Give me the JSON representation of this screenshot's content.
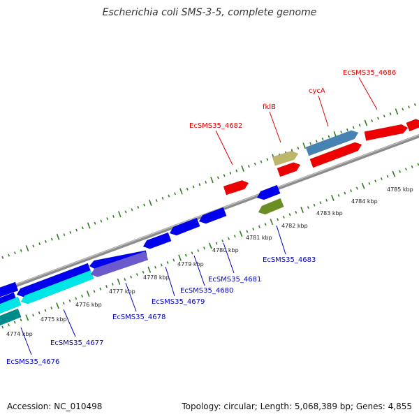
{
  "title": "Escherichia coli SMS-3-5, complete genome",
  "footer": {
    "accession": "Accession: NC_010498",
    "summary": "Topology: circular; Length: 5,068,389 bp; Genes: 4,855"
  },
  "colors": {
    "backbone": "#8c8c8c",
    "tick": "#2e7d1f",
    "label_forward": "#dd0000",
    "label_reverse": "#0000c0",
    "leader_forward": "#dd0000",
    "leader_reverse": "#0000c0"
  },
  "scale": {
    "unit": "kbp",
    "ticks": [
      {
        "kbp": 4774,
        "label": "4774 kbp"
      },
      {
        "kbp": 4775,
        "label": "4775 kbp"
      },
      {
        "kbp": 4776,
        "label": "4776 kbp"
      },
      {
        "kbp": 4777,
        "label": "4777 kbp"
      },
      {
        "kbp": 4778,
        "label": "4778 kbp"
      },
      {
        "kbp": 4779,
        "label": "4779 kbp"
      },
      {
        "kbp": 4780,
        "label": "4780 kbp"
      },
      {
        "kbp": 4781,
        "label": "4781 kbp"
      },
      {
        "kbp": 4782,
        "label": "4782 kbp"
      },
      {
        "kbp": 4783,
        "label": "4783 kbp"
      },
      {
        "kbp": 4784,
        "label": "4784 kbp"
      },
      {
        "kbp": 4785,
        "label": "4785 kbp"
      }
    ]
  },
  "features": [
    {
      "strand": "-",
      "color": "#0000ee"
    },
    {
      "strand": "-",
      "color": "#0000ee"
    },
    {
      "strand": "-",
      "color": "#0000ee"
    },
    {
      "strand": "-",
      "color": "#0000ee"
    },
    {
      "strand": "-",
      "color": "#0000ee"
    },
    {
      "strand": "-",
      "color": "#0000ee"
    },
    {
      "strand": "-",
      "color": "#0000ee"
    },
    {
      "strand": "-",
      "color": "#00e5e5"
    },
    {
      "strand": "-",
      "color": "#00e5e5"
    },
    {
      "strand": "-",
      "color": "#6a5acd"
    },
    {
      "strand": "-",
      "color": "#008b8b"
    },
    {
      "strand": "-",
      "color": "#0000ee"
    },
    {
      "strand": "-",
      "color": "#6b8e23"
    },
    {
      "strand": "+",
      "color": "#ee0000"
    },
    {
      "strand": "+",
      "color": "#bdb76b"
    },
    {
      "strand": "+",
      "color": "#ee0000"
    },
    {
      "strand": "+",
      "color": "#4682b4"
    },
    {
      "strand": "+",
      "color": "#ee0000"
    },
    {
      "strand": "+",
      "color": "#ee0000"
    },
    {
      "strand": "+",
      "color": "#ee0000"
    }
  ],
  "gene_labels": [
    {
      "text": "EcSMS35_4686",
      "strand": "+"
    },
    {
      "text": "cycA",
      "strand": "+"
    },
    {
      "text": "fklB",
      "strand": "+"
    },
    {
      "text": "EcSMS35_4682",
      "strand": "+"
    },
    {
      "text": "EcSMS35_4683",
      "strand": "-"
    },
    {
      "text": "EcSMS35_4681",
      "strand": "-"
    },
    {
      "text": "EcSMS35_4680",
      "strand": "-"
    },
    {
      "text": "EcSMS35_4679",
      "strand": "-"
    },
    {
      "text": "EcSMS35_4678",
      "strand": "-"
    },
    {
      "text": "EcSMS35_4677",
      "strand": "-"
    },
    {
      "text": "EcSMS35_4676",
      "strand": "-"
    }
  ]
}
